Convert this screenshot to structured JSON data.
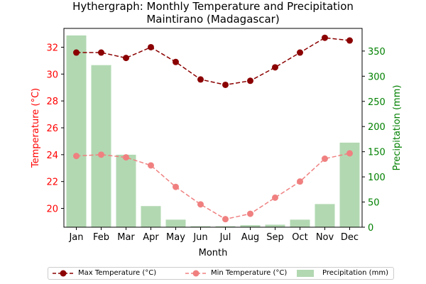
{
  "chart_data": {
    "type": "bar+line",
    "title": "Hythergraph: Monthly Temperature and Precipitation",
    "subtitle": "Maintirano (Madagascar)",
    "xlabel": "Month",
    "ylabel_left": "Temperature (°C)",
    "ylabel_right": "Precipitation (mm)",
    "categories": [
      "Jan",
      "Feb",
      "Mar",
      "Apr",
      "May",
      "Jun",
      "Jul",
      "Aug",
      "Sep",
      "Oct",
      "Nov",
      "Dec"
    ],
    "ylim_left": [
      18.6,
      33.4
    ],
    "ylim_right": [
      0,
      395
    ],
    "yticks_left": [
      20,
      22,
      24,
      26,
      28,
      30,
      32
    ],
    "yticks_right": [
      0,
      50,
      100,
      150,
      200,
      250,
      300,
      350
    ],
    "grid": false,
    "legend_position": "bottom",
    "series": [
      {
        "name": "Max Temperature (°C)",
        "kind": "line",
        "axis": "left",
        "color": "#8b0000",
        "style": "dashed",
        "marker": "circle",
        "values": [
          31.6,
          31.6,
          31.2,
          32.0,
          30.9,
          29.6,
          29.2,
          29.5,
          30.5,
          31.6,
          32.7,
          32.5
        ]
      },
      {
        "name": "Min Temperature (°C)",
        "kind": "line",
        "axis": "right_hidden_left_scale",
        "color": "#f08080",
        "style": "dashed",
        "marker": "circle",
        "values": [
          23.9,
          24.0,
          23.8,
          23.2,
          21.6,
          20.3,
          19.2,
          19.6,
          20.8,
          22.0,
          23.7,
          24.1
        ]
      },
      {
        "name": "Precipitation (mm)",
        "kind": "bar",
        "axis": "right",
        "color": "#b2d8b2",
        "values": [
          381,
          322,
          144,
          42,
          15,
          2,
          2,
          4,
          5,
          15,
          46,
          168
        ]
      }
    ],
    "colors": {
      "left_axis": "#ff0000",
      "right_axis": "#008000",
      "max_line": "#8b0000",
      "min_line": "#f08080",
      "bars": "#b2d8b2"
    }
  }
}
